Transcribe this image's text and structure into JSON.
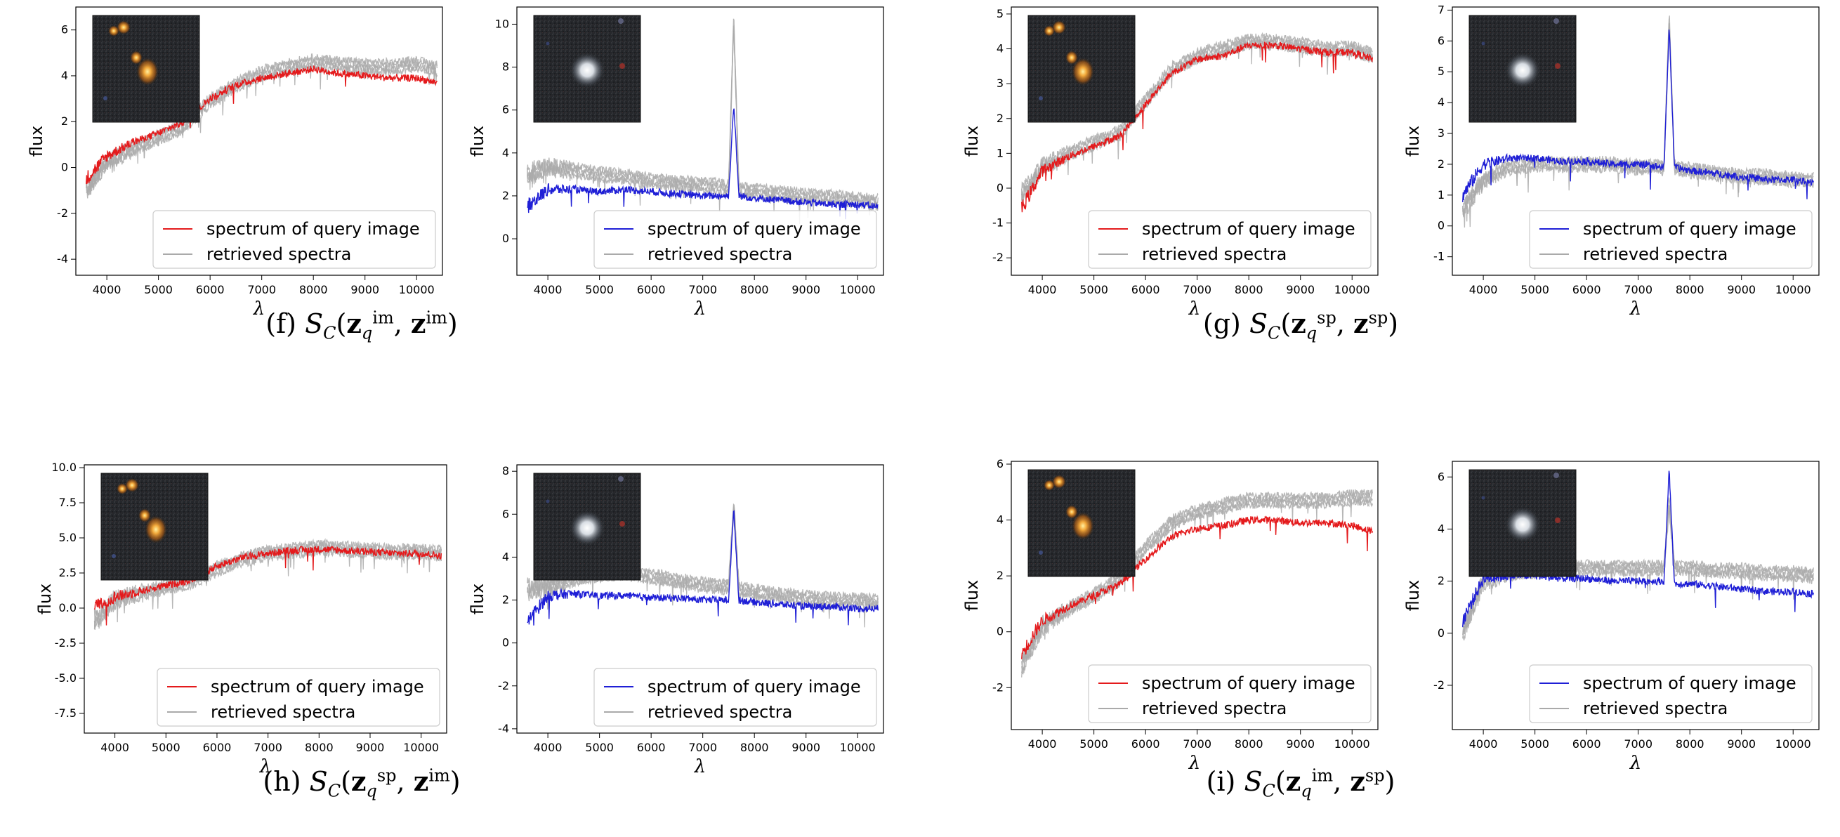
{
  "figure": {
    "captions": [
      {
        "label": "(f)",
        "sub1": "q",
        "sup1": "im",
        "sup2": "im"
      },
      {
        "label": "(g)",
        "sub1": "q",
        "sup1": "sp",
        "sup2": "sp"
      },
      {
        "label": "(h)",
        "sub1": "q",
        "sup1": "sp",
        "sup2": "im"
      },
      {
        "label": "(i)",
        "sub1": "q",
        "sup1": "im",
        "sup2": "sp"
      }
    ],
    "caption_symbol_S": "S",
    "caption_symbol_C": "C",
    "caption_symbol_z": "z"
  },
  "colors": {
    "query_red": "#e41a1c",
    "query_blue": "#1f1fd6",
    "retrieved_gray": "#aaaaaa",
    "axis": "#000000"
  },
  "icons": [
    "galaxy-thumbnail-icon"
  ],
  "chart_data": [
    {
      "id": "f-left",
      "type": "line",
      "xlabel": "λ",
      "ylabel": "flux",
      "xlim": [
        3400,
        10500
      ],
      "ylim": [
        -4.7,
        7.0
      ],
      "xticks": [
        4000,
        5000,
        6000,
        7000,
        8000,
        9000,
        10000
      ],
      "yticks": [
        -4,
        -2,
        0,
        2,
        4,
        6
      ],
      "legend": "lower-right",
      "inset": "galaxy-pair",
      "series": [
        {
          "name": "spectrum of query image",
          "role": "query",
          "color": "red",
          "x": [
            3600,
            4000,
            4500,
            5000,
            5500,
            6000,
            6500,
            7000,
            7500,
            8000,
            8500,
            9000,
            9500,
            10000,
            10400
          ],
          "y": [
            -0.5,
            0.5,
            1.1,
            1.5,
            2.0,
            3.0,
            3.6,
            3.9,
            4.1,
            4.3,
            4.1,
            4.0,
            3.9,
            3.9,
            3.7
          ]
        },
        {
          "name": "retrieved spectra",
          "role": "retrieved",
          "color": "gray",
          "x": [
            3600,
            4000,
            4500,
            5000,
            5500,
            6000,
            6500,
            7000,
            7500,
            8000,
            8500,
            9000,
            9500,
            10000,
            10400
          ],
          "y": [
            -1.0,
            0.2,
            0.8,
            1.3,
            1.8,
            2.9,
            3.6,
            4.1,
            4.4,
            4.6,
            4.5,
            4.4,
            4.4,
            4.5,
            4.3
          ]
        }
      ]
    },
    {
      "id": "f-right",
      "type": "line",
      "xlabel": "λ",
      "ylabel": "flux",
      "xlim": [
        3400,
        10500
      ],
      "ylim": [
        -1.7,
        10.8
      ],
      "xticks": [
        4000,
        5000,
        6000,
        7000,
        8000,
        9000,
        10000
      ],
      "yticks": [
        0,
        2,
        4,
        6,
        8,
        10
      ],
      "legend": "lower-right",
      "inset": "bright-star",
      "series": [
        {
          "name": "spectrum of query image",
          "role": "query",
          "color": "blue",
          "x": [
            3600,
            4000,
            4500,
            5000,
            5500,
            6000,
            6500,
            7000,
            7500,
            7600,
            7700,
            8000,
            8500,
            9000,
            9500,
            10000,
            10400
          ],
          "y": [
            1.5,
            2.3,
            2.3,
            2.2,
            2.3,
            2.2,
            2.1,
            2.0,
            2.0,
            6.3,
            2.0,
            1.9,
            1.8,
            1.7,
            1.6,
            1.6,
            1.5
          ]
        },
        {
          "name": "retrieved spectra",
          "role": "retrieved",
          "color": "gray",
          "x": [
            3600,
            4000,
            4500,
            5000,
            5500,
            6000,
            6500,
            7000,
            7500,
            7600,
            7700,
            8000,
            8500,
            9000,
            9500,
            10000,
            10400
          ],
          "y": [
            3.0,
            3.3,
            3.2,
            3.0,
            2.9,
            2.7,
            2.6,
            2.5,
            2.4,
            10.2,
            2.3,
            2.2,
            2.1,
            2.0,
            1.9,
            1.8,
            1.7
          ]
        }
      ]
    },
    {
      "id": "g-left",
      "type": "line",
      "xlabel": "λ",
      "ylabel": "flux",
      "xlim": [
        3400,
        10500
      ],
      "ylim": [
        -2.5,
        5.2
      ],
      "xticks": [
        4000,
        5000,
        6000,
        7000,
        8000,
        9000,
        10000
      ],
      "yticks": [
        -2,
        -1,
        0,
        1,
        2,
        3,
        4,
        5
      ],
      "legend": "lower-right",
      "inset": "galaxy-pair",
      "series": [
        {
          "name": "spectrum of query image",
          "role": "query",
          "color": "red",
          "x": [
            3600,
            4000,
            4500,
            5000,
            5500,
            6000,
            6500,
            7000,
            7500,
            8000,
            8500,
            9000,
            9500,
            10000,
            10400
          ],
          "y": [
            -0.6,
            0.5,
            0.9,
            1.2,
            1.5,
            2.4,
            3.3,
            3.7,
            3.8,
            4.1,
            4.1,
            4.0,
            3.9,
            3.9,
            3.7
          ]
        },
        {
          "name": "retrieved spectra",
          "role": "retrieved",
          "color": "gray",
          "x": [
            3600,
            4000,
            4500,
            5000,
            5500,
            6000,
            6500,
            7000,
            7500,
            8000,
            8500,
            9000,
            9500,
            10000,
            10400
          ],
          "y": [
            -0.2,
            0.6,
            1.0,
            1.3,
            1.6,
            2.5,
            3.4,
            3.8,
            4.0,
            4.2,
            4.2,
            4.1,
            4.0,
            4.0,
            3.8
          ]
        }
      ]
    },
    {
      "id": "g-right",
      "type": "line",
      "xlabel": "λ",
      "ylabel": "flux",
      "xlim": [
        3400,
        10500
      ],
      "ylim": [
        -1.6,
        7.1
      ],
      "xticks": [
        4000,
        5000,
        6000,
        7000,
        8000,
        9000,
        10000
      ],
      "yticks": [
        -1,
        0,
        1,
        2,
        3,
        4,
        5,
        6,
        7
      ],
      "legend": "lower-right",
      "inset": "bright-star",
      "series": [
        {
          "name": "spectrum of query image",
          "role": "query",
          "color": "blue",
          "x": [
            3600,
            4000,
            4500,
            5000,
            5500,
            6000,
            6500,
            7000,
            7500,
            7600,
            7700,
            8000,
            8500,
            9000,
            9500,
            10000,
            10400
          ],
          "y": [
            1.0,
            2.0,
            2.2,
            2.2,
            2.1,
            2.1,
            2.0,
            2.0,
            1.9,
            6.5,
            1.9,
            1.8,
            1.7,
            1.6,
            1.5,
            1.5,
            1.4
          ]
        },
        {
          "name": "retrieved spectra",
          "role": "retrieved",
          "color": "gray",
          "x": [
            3600,
            4000,
            4500,
            5000,
            5500,
            6000,
            6500,
            7000,
            7500,
            7600,
            7700,
            8000,
            8500,
            9000,
            9500,
            10000,
            10400
          ],
          "y": [
            0.5,
            1.5,
            1.9,
            2.0,
            2.0,
            2.0,
            2.0,
            1.9,
            1.9,
            6.8,
            1.9,
            1.8,
            1.7,
            1.6,
            1.6,
            1.5,
            1.5
          ]
        }
      ]
    },
    {
      "id": "h-left",
      "type": "line",
      "xlabel": "λ",
      "ylabel": "flux",
      "xlim": [
        3400,
        10500
      ],
      "ylim": [
        -8.9,
        10.2
      ],
      "xticks": [
        4000,
        5000,
        6000,
        7000,
        8000,
        9000,
        10000
      ],
      "yticks": [
        -7.5,
        -5.0,
        -2.5,
        0.0,
        2.5,
        5.0,
        7.5,
        10.0
      ],
      "legend": "lower-right",
      "inset": "galaxy-pair",
      "series": [
        {
          "name": "spectrum of query image",
          "role": "query",
          "color": "red",
          "x": [
            3600,
            4000,
            4500,
            5000,
            5500,
            6000,
            6500,
            7000,
            7500,
            8000,
            8500,
            9000,
            9500,
            10000,
            10400
          ],
          "y": [
            0.0,
            0.8,
            1.2,
            1.6,
            2.0,
            3.0,
            3.6,
            3.9,
            4.1,
            4.2,
            4.1,
            4.0,
            3.9,
            3.9,
            3.7
          ]
        },
        {
          "name": "retrieved spectra",
          "role": "retrieved",
          "color": "gray",
          "x": [
            3600,
            4000,
            4500,
            5000,
            5500,
            6000,
            6500,
            7000,
            7500,
            8000,
            8500,
            9000,
            9500,
            10000,
            10400
          ],
          "y": [
            -1.0,
            0.6,
            1.1,
            1.5,
            1.9,
            2.8,
            3.5,
            3.9,
            4.1,
            4.3,
            4.2,
            4.1,
            4.0,
            4.0,
            3.9
          ]
        }
      ]
    },
    {
      "id": "h-right",
      "type": "line",
      "xlabel": "λ",
      "ylabel": "flux",
      "xlim": [
        3400,
        10500
      ],
      "ylim": [
        -4.2,
        8.3
      ],
      "xticks": [
        4000,
        5000,
        6000,
        7000,
        8000,
        9000,
        10000
      ],
      "yticks": [
        -4,
        -2,
        0,
        2,
        4,
        6,
        8
      ],
      "legend": "lower-right",
      "inset": "bright-star",
      "series": [
        {
          "name": "spectrum of query image",
          "role": "query",
          "color": "blue",
          "x": [
            3600,
            4000,
            4500,
            5000,
            5500,
            6000,
            6500,
            7000,
            7500,
            7600,
            7700,
            8000,
            8500,
            9000,
            9500,
            10000,
            10400
          ],
          "y": [
            1.0,
            2.2,
            2.3,
            2.2,
            2.2,
            2.1,
            2.1,
            2.0,
            2.0,
            6.2,
            2.0,
            1.9,
            1.8,
            1.7,
            1.7,
            1.6,
            1.6
          ]
        },
        {
          "name": "retrieved spectra",
          "role": "retrieved",
          "color": "gray",
          "x": [
            3600,
            4000,
            4500,
            5000,
            5500,
            6000,
            6500,
            7000,
            7500,
            7600,
            7700,
            8000,
            8500,
            9000,
            9500,
            10000,
            10400
          ],
          "y": [
            2.5,
            2.6,
            3.0,
            3.2,
            3.3,
            3.1,
            2.9,
            2.7,
            2.6,
            6.5,
            2.5,
            2.4,
            2.2,
            2.1,
            2.0,
            2.0,
            1.9
          ]
        }
      ]
    },
    {
      "id": "i-left",
      "type": "line",
      "xlabel": "λ",
      "ylabel": "flux",
      "xlim": [
        3400,
        10500
      ],
      "ylim": [
        -3.5,
        6.1
      ],
      "xticks": [
        4000,
        5000,
        6000,
        7000,
        8000,
        9000,
        10000
      ],
      "yticks": [
        -2,
        0,
        2,
        4,
        6
      ],
      "legend": "lower-right",
      "inset": "galaxy-pair",
      "series": [
        {
          "name": "spectrum of query image",
          "role": "query",
          "color": "red",
          "x": [
            3600,
            4000,
            4500,
            5000,
            5500,
            6000,
            6500,
            7000,
            7500,
            8000,
            8500,
            9000,
            9500,
            10000,
            10400
          ],
          "y": [
            -0.8,
            0.4,
            0.9,
            1.3,
            1.7,
            2.6,
            3.4,
            3.7,
            3.8,
            4.0,
            4.0,
            3.9,
            3.9,
            3.8,
            3.6
          ]
        },
        {
          "name": "retrieved spectra",
          "role": "retrieved",
          "color": "gray",
          "x": [
            3600,
            4000,
            4500,
            5000,
            5500,
            6000,
            6500,
            7000,
            7500,
            8000,
            8500,
            9000,
            9500,
            10000,
            10400
          ],
          "y": [
            -1.2,
            0.2,
            0.8,
            1.3,
            1.9,
            3.0,
            3.9,
            4.3,
            4.5,
            4.7,
            4.7,
            4.7,
            4.7,
            4.8,
            4.8
          ]
        }
      ]
    },
    {
      "id": "i-right",
      "type": "line",
      "xlabel": "λ",
      "ylabel": "flux",
      "xlim": [
        3400,
        10500
      ],
      "ylim": [
        -3.7,
        6.6
      ],
      "xticks": [
        4000,
        5000,
        6000,
        7000,
        8000,
        9000,
        10000
      ],
      "yticks": [
        -2,
        0,
        2,
        4,
        6
      ],
      "legend": "lower-right",
      "inset": "bright-star",
      "series": [
        {
          "name": "spectrum of query image",
          "role": "query",
          "color": "blue",
          "x": [
            3600,
            4000,
            4500,
            5000,
            5500,
            6000,
            6500,
            7000,
            7500,
            7600,
            7700,
            8000,
            8500,
            9000,
            9500,
            10000,
            10400
          ],
          "y": [
            0.5,
            2.1,
            2.2,
            2.2,
            2.1,
            2.1,
            2.0,
            2.0,
            2.0,
            6.3,
            1.9,
            1.9,
            1.8,
            1.7,
            1.6,
            1.6,
            1.5
          ]
        },
        {
          "name": "retrieved spectra",
          "role": "retrieved",
          "color": "gray",
          "x": [
            3600,
            4000,
            4500,
            5000,
            5500,
            6000,
            6500,
            7000,
            7500,
            7600,
            7700,
            8000,
            8500,
            9000,
            9500,
            10000,
            10400
          ],
          "y": [
            0.0,
            2.0,
            2.3,
            2.4,
            2.5,
            2.5,
            2.5,
            2.5,
            2.5,
            5.0,
            2.5,
            2.5,
            2.4,
            2.4,
            2.3,
            2.3,
            2.2
          ]
        }
      ]
    }
  ]
}
